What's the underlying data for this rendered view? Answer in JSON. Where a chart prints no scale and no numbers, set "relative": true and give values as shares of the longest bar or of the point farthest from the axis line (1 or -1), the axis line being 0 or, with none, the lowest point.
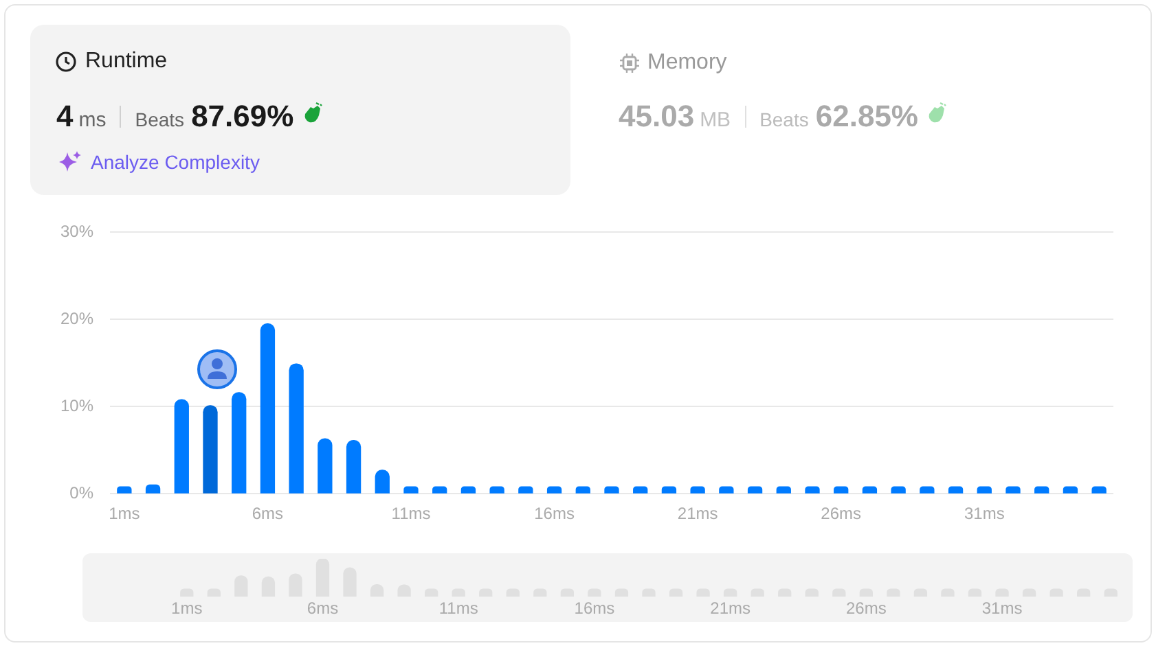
{
  "chart_data": [
    {
      "type": "bar",
      "categories": [
        "1ms",
        null,
        null,
        null,
        null,
        "6ms",
        null,
        null,
        null,
        null,
        "11ms",
        null,
        null,
        null,
        null,
        "16ms",
        null,
        null,
        null,
        null,
        "21ms",
        null,
        null,
        null,
        null,
        "26ms",
        null,
        null,
        null,
        null,
        "31ms",
        null,
        null,
        null,
        null
      ],
      "values": [
        0.8,
        1.0,
        10.8,
        10.1,
        11.6,
        19.5,
        14.9,
        6.3,
        6.1,
        2.7,
        0.8,
        0.8,
        0.8,
        0.8,
        0.8,
        0.8,
        0.8,
        0.8,
        0.8,
        0.8,
        0.8,
        0.8,
        0.8,
        0.8,
        0.8,
        0.8,
        0.8,
        0.8,
        0.8,
        0.8,
        0.8,
        0.8,
        0.8,
        0.8,
        0.8
      ],
      "colors": [
        "#007bff",
        "#007bff",
        "#007bff",
        "#0069d9",
        "#007bff",
        "#007bff",
        "#007bff",
        "#007bff",
        "#007bff",
        "#007bff",
        "#007bff",
        "#007bff",
        "#007bff",
        "#007bff",
        "#007bff",
        "#007bff",
        "#007bff",
        "#007bff",
        "#007bff",
        "#007bff",
        "#007bff",
        "#007bff",
        "#007bff",
        "#007bff",
        "#007bff",
        "#007bff",
        "#007bff",
        "#007bff",
        "#007bff",
        "#007bff",
        "#007bff",
        "#007bff",
        "#007bff",
        "#007bff",
        "#007bff"
      ],
      "ylim": [
        0,
        30
      ],
      "yticks": [
        {
          "value": 0,
          "label": "0%"
        },
        {
          "value": 10,
          "label": "10%"
        },
        {
          "value": 20,
          "label": "20%"
        },
        {
          "value": 30,
          "label": "30%"
        }
      ],
      "grid": "y",
      "annotations": [
        "Runtime",
        "4",
        "ms",
        "Beats",
        "87.69%",
        "Analyze Complexity",
        "Memory",
        "45.03",
        "MB",
        "Beats",
        "62.85%"
      ]
    },
    {
      "type": "bar",
      "relative": true,
      "categories": [
        "1ms",
        null,
        null,
        null,
        null,
        "6ms",
        null,
        null,
        null,
        null,
        "11ms",
        null,
        null,
        null,
        null,
        "16ms",
        null,
        null,
        null,
        null,
        "21ms",
        null,
        null,
        null,
        null,
        "26ms",
        null,
        null,
        null,
        null,
        "31ms",
        null,
        null,
        null,
        null
      ],
      "values": [
        0.2,
        0.2,
        0.55,
        0.52,
        0.6,
        1,
        0.76,
        0.32,
        0.31,
        0.2,
        0.2,
        0.2,
        0.2,
        0.2,
        0.2,
        0.2,
        0.2,
        0.2,
        0.2,
        0.2,
        0.2,
        0.2,
        0.2,
        0.2,
        0.2,
        0.2,
        0.2,
        0.2,
        0.2,
        0.2,
        0.2,
        0.2,
        0.2,
        0.2,
        0.2
      ],
      "color": "#e0e0e0"
    }
  ]
}
